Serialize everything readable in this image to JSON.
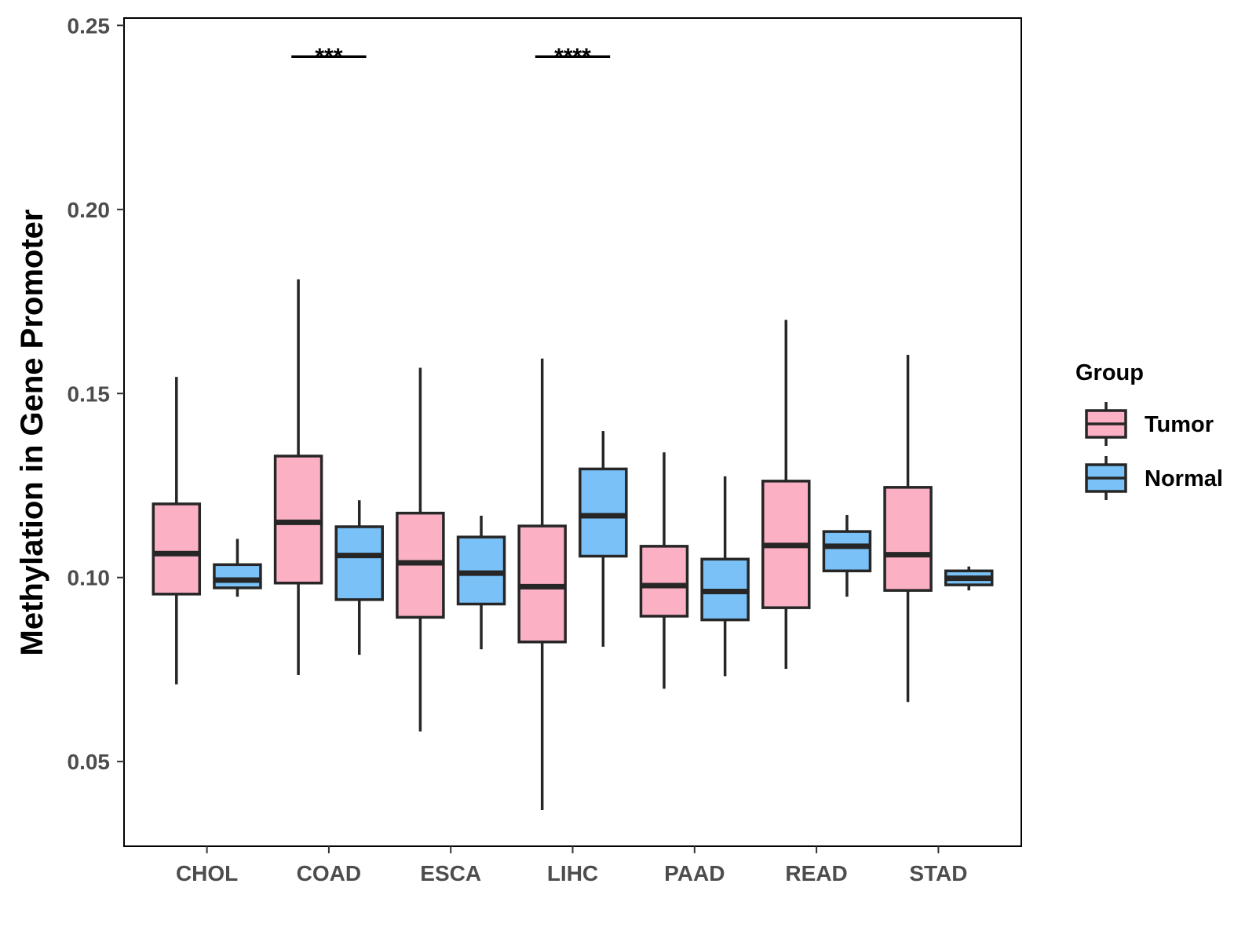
{
  "chart_data": {
    "type": "boxplot",
    "ylabel": "Methylation in Gene Promoter",
    "xlabel": "",
    "ylim": [
      0.027,
      0.252
    ],
    "yticks": [
      0.05,
      0.1,
      0.15,
      0.2,
      0.25
    ],
    "ytick_labels": [
      "0.05",
      "0.10",
      "0.15",
      "0.20",
      "0.25"
    ],
    "categories": [
      "CHOL",
      "COAD",
      "ESCA",
      "LIHC",
      "PAAD",
      "READ",
      "STAD"
    ],
    "legend": {
      "title": "Group",
      "position": "right",
      "entries": [
        {
          "name": "Tumor",
          "color": "#FBB0C4"
        },
        {
          "name": "Normal",
          "color": "#79C1F6"
        }
      ]
    },
    "series": [
      {
        "name": "Tumor",
        "color": "#FBB0C4",
        "boxes": [
          {
            "min": 0.071,
            "q1": 0.0955,
            "median": 0.1065,
            "q3": 0.12,
            "max": 0.1545
          },
          {
            "min": 0.0735,
            "q1": 0.0985,
            "median": 0.115,
            "q3": 0.133,
            "max": 0.181
          },
          {
            "min": 0.0582,
            "q1": 0.0892,
            "median": 0.104,
            "q3": 0.1175,
            "max": 0.157
          },
          {
            "min": 0.0368,
            "q1": 0.0825,
            "median": 0.0975,
            "q3": 0.114,
            "max": 0.1595
          },
          {
            "min": 0.0698,
            "q1": 0.0895,
            "median": 0.0978,
            "q3": 0.1085,
            "max": 0.134
          },
          {
            "min": 0.0752,
            "q1": 0.0918,
            "median": 0.1087,
            "q3": 0.1262,
            "max": 0.17
          },
          {
            "min": 0.0662,
            "q1": 0.0965,
            "median": 0.1062,
            "q3": 0.1245,
            "max": 0.1605
          }
        ]
      },
      {
        "name": "Normal",
        "color": "#79C1F6",
        "boxes": [
          {
            "min": 0.0948,
            "q1": 0.0972,
            "median": 0.0993,
            "q3": 0.1035,
            "max": 0.1105
          },
          {
            "min": 0.079,
            "q1": 0.094,
            "median": 0.106,
            "q3": 0.1138,
            "max": 0.121
          },
          {
            "min": 0.0805,
            "q1": 0.0928,
            "median": 0.1012,
            "q3": 0.111,
            "max": 0.1168
          },
          {
            "min": 0.0812,
            "q1": 0.1058,
            "median": 0.1168,
            "q3": 0.1295,
            "max": 0.1398
          },
          {
            "min": 0.0732,
            "q1": 0.0885,
            "median": 0.0962,
            "q3": 0.105,
            "max": 0.1275
          },
          {
            "min": 0.0948,
            "q1": 0.1018,
            "median": 0.1085,
            "q3": 0.1125,
            "max": 0.117
          },
          {
            "min": 0.0965,
            "q1": 0.098,
            "median": 0.0998,
            "q3": 0.1018,
            "max": 0.103
          }
        ]
      }
    ],
    "annotations": [
      {
        "category": "COAD",
        "label": "***",
        "y": 0.2415
      },
      {
        "category": "LIHC",
        "label": "****",
        "y": 0.2415
      }
    ]
  }
}
